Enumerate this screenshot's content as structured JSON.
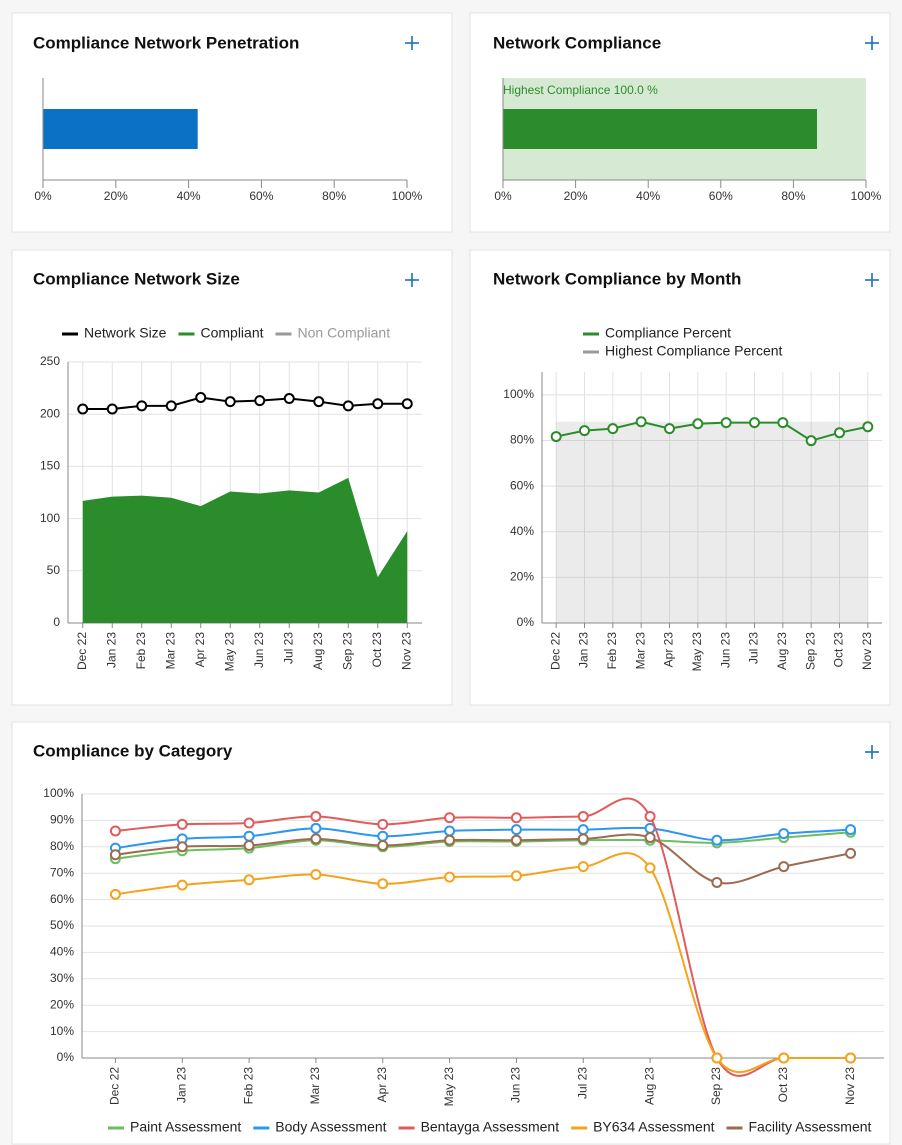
{
  "chart_data": [
    {
      "type": "bar",
      "orientation": "horizontal",
      "title": "Compliance Network Penetration",
      "values": [
        42.5
      ],
      "color": "#0a72c4",
      "xlim": [
        0,
        100
      ],
      "xticks": [
        {
          "value": 0,
          "label": "0%"
        },
        {
          "value": 20,
          "label": "20%"
        },
        {
          "value": 40,
          "label": "40%"
        },
        {
          "value": 60,
          "label": "60%"
        },
        {
          "value": 80,
          "label": "80%"
        },
        {
          "value": 100,
          "label": "100%"
        }
      ]
    },
    {
      "type": "bar",
      "orientation": "horizontal",
      "title": "Network Compliance",
      "values": [
        86.5
      ],
      "color": "#2a8c2a",
      "highest": 100,
      "highest_color": "#d6ead3",
      "annotation": "Highest Compliance 100.0 %",
      "xlim": [
        0,
        100
      ],
      "xticks": [
        {
          "value": 0,
          "label": "0%"
        },
        {
          "value": 20,
          "label": "20%"
        },
        {
          "value": 40,
          "label": "40%"
        },
        {
          "value": 60,
          "label": "60%"
        },
        {
          "value": 80,
          "label": "80%"
        },
        {
          "value": 100,
          "label": "100%"
        }
      ]
    },
    {
      "type": "line",
      "title": "Compliance Network Size",
      "legend": "top",
      "grid": true,
      "smooth": false,
      "categories": [
        "Dec 22",
        "Jan 23",
        "Feb 23",
        "Mar 23",
        "Apr 23",
        "May 23",
        "Jun 23",
        "Jul 23",
        "Aug 23",
        "Sep 23",
        "Oct 23",
        "Nov 23"
      ],
      "series": [
        {
          "name": "Network Size",
          "color": "#000000",
          "style": "line",
          "values": [
            205,
            205,
            208,
            208,
            216,
            212,
            213,
            215,
            212,
            208,
            210,
            210
          ]
        },
        {
          "name": "Compliant",
          "color": "#2a8c2a",
          "style": "area",
          "values": [
            117,
            121,
            122,
            120,
            112,
            126,
            124,
            127,
            125,
            139,
            44,
            88
          ]
        },
        {
          "name": "Non Compliant",
          "color": "#999999",
          "style": "line",
          "hidden": true,
          "values": [
            null,
            null,
            null,
            null,
            null,
            null,
            null,
            null,
            null,
            null,
            null,
            null
          ]
        }
      ],
      "ylim": [
        0,
        250
      ],
      "yticks": [
        0,
        50,
        100,
        150,
        200,
        250
      ]
    },
    {
      "type": "line",
      "title": "Network Compliance by Month",
      "legend": "top",
      "grid": true,
      "smooth": false,
      "categories": [
        "Dec 22",
        "Jan 23",
        "Feb 23",
        "Mar 23",
        "Apr 23",
        "May 23",
        "Jun 23",
        "Jul 23",
        "Aug 23",
        "Sep 23",
        "Oct 23",
        "Nov 23"
      ],
      "series": [
        {
          "name": "Compliance Percent",
          "color": "#2a8c2a",
          "style": "line",
          "values": [
            81.7,
            84.3,
            85.2,
            88.2,
            85.2,
            87.3,
            87.8,
            87.8,
            87.8,
            79.9,
            83.4,
            86.0
          ]
        },
        {
          "name": "Highest Compliance Percent",
          "color": "#999999",
          "style": "area",
          "values": [
            88.2,
            88.2,
            88.2,
            88.2,
            88.2,
            88.2,
            88.2,
            88.2,
            88.2,
            88.2,
            88.2,
            88.2
          ]
        }
      ],
      "ylim": [
        0,
        110
      ],
      "yticks": [
        {
          "value": 0,
          "label": "0%"
        },
        {
          "value": 20,
          "label": "20%"
        },
        {
          "value": 40,
          "label": "40%"
        },
        {
          "value": 60,
          "label": "60%"
        },
        {
          "value": 80,
          "label": "80%"
        },
        {
          "value": 100,
          "label": "100%"
        }
      ]
    },
    {
      "type": "line",
      "title": "Compliance by Category",
      "legend": "bottom",
      "grid": true,
      "smooth": true,
      "categories": [
        "Dec 22",
        "Jan 23",
        "Feb 23",
        "Mar 23",
        "Apr 23",
        "May 23",
        "Jun 23",
        "Jul 23",
        "Aug 23",
        "Sep 23",
        "Oct 23",
        "Nov 23"
      ],
      "series": [
        {
          "name": "Paint Assessment",
          "color": "#6abf5e",
          "style": "line",
          "values": [
            75.5,
            78.5,
            79.5,
            82.5,
            80,
            82,
            82,
            82.5,
            82.5,
            81.5,
            83.5,
            85.5
          ]
        },
        {
          "name": "Body Assessment",
          "color": "#2e96f0",
          "style": "line",
          "values": [
            79.5,
            83,
            84,
            87,
            84,
            86,
            86.5,
            86.5,
            87,
            82.5,
            85,
            86.5
          ]
        },
        {
          "name": "Bentayga Assessment",
          "color": "#e05c5c",
          "style": "line",
          "values": [
            86,
            88.5,
            89,
            91.5,
            88.5,
            91,
            91,
            91.5,
            91.5,
            0,
            0,
            0
          ]
        },
        {
          "name": "BY634 Assessment",
          "color": "#f5a31a",
          "style": "line",
          "values": [
            62,
            65.5,
            67.5,
            69.5,
            66,
            68.5,
            69,
            72.5,
            72,
            0,
            0,
            0
          ]
        },
        {
          "name": "Facility Assessment",
          "color": "#9c6b50",
          "style": "line",
          "values": [
            77,
            80,
            80.5,
            83,
            80.5,
            82.5,
            82.5,
            83,
            83.5,
            66.5,
            72.5,
            77.5
          ]
        }
      ],
      "ylim": [
        0,
        100
      ],
      "yticks": [
        {
          "value": 0,
          "label": "0%"
        },
        {
          "value": 10,
          "label": "10%"
        },
        {
          "value": 20,
          "label": "20%"
        },
        {
          "value": 30,
          "label": "30%"
        },
        {
          "value": 40,
          "label": "40%"
        },
        {
          "value": 50,
          "label": "50%"
        },
        {
          "value": 60,
          "label": "60%"
        },
        {
          "value": 70,
          "label": "70%"
        },
        {
          "value": 80,
          "label": "80%"
        },
        {
          "value": 90,
          "label": "90%"
        },
        {
          "value": 100,
          "label": "100%"
        }
      ]
    }
  ]
}
